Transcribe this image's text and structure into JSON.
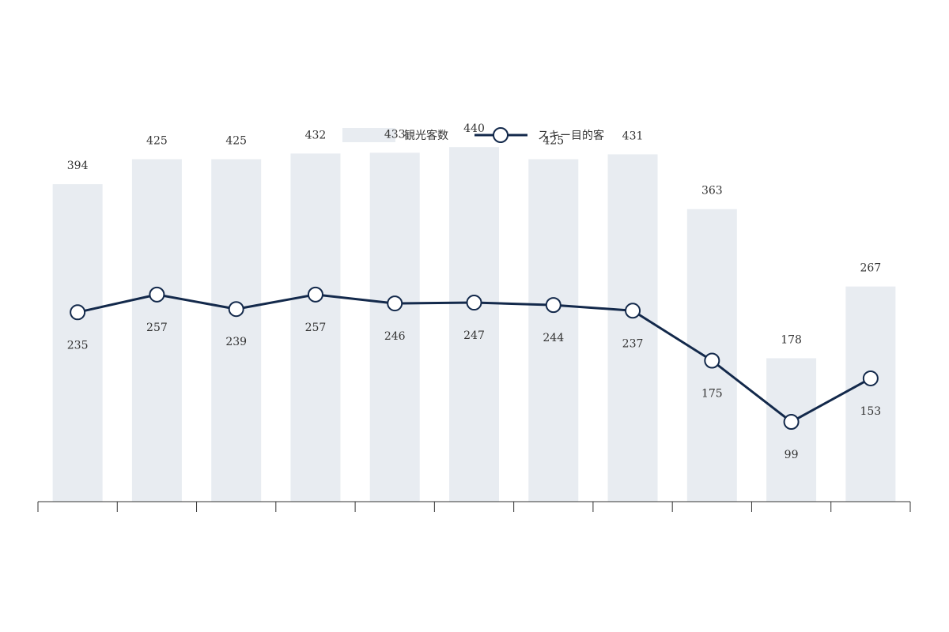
{
  "chart_data": {
    "type": "bar",
    "x": [
      "",
      "",
      "",
      "",
      "",
      "",
      "",
      "",
      "",
      "",
      ""
    ],
    "series": [
      {
        "name": "観光客数",
        "type": "bar",
        "color": "#e8ecf1",
        "values": [
          394,
          425,
          425,
          432,
          433,
          440,
          425,
          431,
          363,
          178,
          267
        ]
      },
      {
        "name": "スキー目的客",
        "type": "line",
        "color": "#13294b",
        "values": [
          235,
          257,
          239,
          257,
          246,
          247,
          244,
          237,
          175,
          99,
          153
        ]
      }
    ],
    "ylim": [
      0,
      500
    ],
    "grid": false,
    "legend": "top-center"
  }
}
